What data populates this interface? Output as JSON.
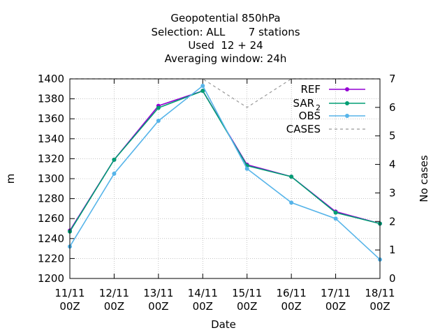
{
  "chart_data": {
    "type": "line",
    "title_lines": [
      "Geopotential 850hPa",
      "Selection: ALL       7 stations",
      "Used  12 + 24",
      "Averaging window: 24h"
    ],
    "xlabel": "Date",
    "ylabel": "m",
    "y2label": "No cases",
    "categories": [
      "11/11\n00Z",
      "12/11\n00Z",
      "13/11\n00Z",
      "14/11\n00Z",
      "15/11\n00Z",
      "16/11\n00Z",
      "17/11\n00Z",
      "18/11\n00Z"
    ],
    "ylim": [
      1200,
      1400
    ],
    "yticks": [
      1200,
      1220,
      1240,
      1260,
      1280,
      1300,
      1320,
      1340,
      1360,
      1380,
      1400
    ],
    "y2lim": [
      0,
      7
    ],
    "y2ticks": [
      0,
      1,
      2,
      3,
      4,
      5,
      6,
      7
    ],
    "grid": true,
    "legend_position": "top-right",
    "series": [
      {
        "name": "REF",
        "axis": "y",
        "color": "#9400d3",
        "dashed": false,
        "values": [
          1248,
          1319,
          1373,
          1388,
          1314,
          1302,
          1267,
          1255
        ]
      },
      {
        "name": "SAR_2",
        "axis": "y",
        "color": "#009e73",
        "dashed": false,
        "values": [
          1247,
          1319,
          1371,
          1388,
          1313,
          1302,
          1266,
          1255
        ]
      },
      {
        "name": "OBS",
        "axis": "y",
        "color": "#56b4e9",
        "dashed": false,
        "values": [
          1232,
          1305,
          1358,
          1393,
          1310,
          1276,
          1260,
          1219
        ]
      },
      {
        "name": "CASES",
        "axis": "y2",
        "color": "#999999",
        "dashed": true,
        "values": [
          7,
          7,
          7,
          7,
          6,
          7,
          7,
          7
        ]
      }
    ]
  }
}
